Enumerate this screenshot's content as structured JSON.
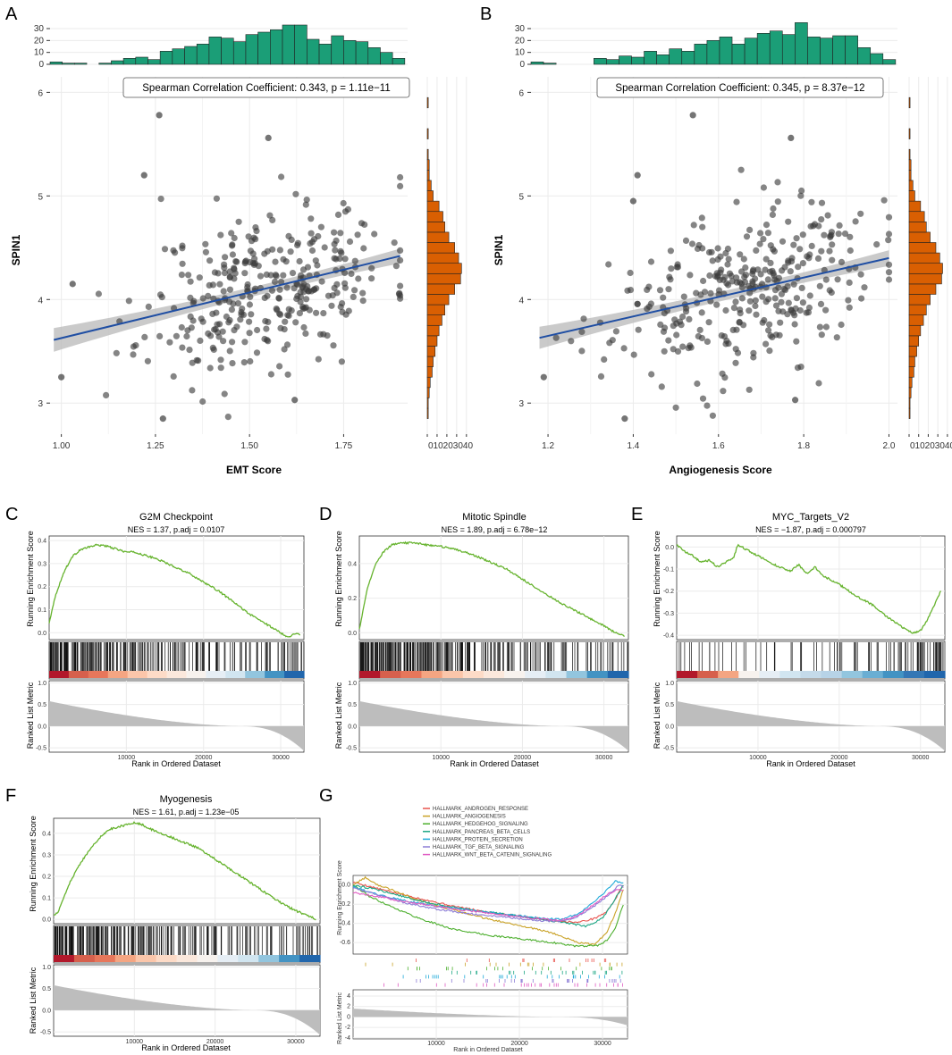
{
  "panel_labels": [
    "A",
    "B",
    "C",
    "D",
    "E",
    "F",
    "G"
  ],
  "colors": {
    "hist_top": "#1b9e77",
    "hist_right": "#d95f02",
    "points": "#3a3a3a",
    "reg_line": "#1f4ea3",
    "ribbon": "#b8b8b8",
    "es_line": "#66b32e",
    "metric_fill": "#bdbdbd",
    "grid": "#ebebeb"
  },
  "chart_data": [
    {
      "id": "A",
      "type": "scatter",
      "title": "Spearman Correlation Coefficient: 0.343, p = 1.11e−11",
      "xlabel": "EMT Score",
      "ylabel": "SPIN1",
      "xlim": [
        0.97,
        1.92
      ],
      "ylim": [
        2.7,
        6.15
      ],
      "xticks": [
        1.0,
        1.25,
        1.5,
        1.75
      ],
      "xtick_labels": [
        "1.00",
        "1.25",
        "1.50",
        "1.75"
      ],
      "yticks": [
        3,
        4,
        5,
        6
      ],
      "ytick_labels": [
        "3",
        "4",
        "5",
        "6"
      ],
      "regression": {
        "x0": 0.98,
        "y0": 3.61,
        "x1": 1.9,
        "y1": 4.42
      },
      "seed": 11,
      "n_points": 330,
      "x_mean": 1.55,
      "x_sd": 0.16,
      "y_mean": 4.0,
      "y_sd": 0.45,
      "outliers": [
        [
          1.0,
          3.25
        ],
        [
          1.26,
          5.78
        ],
        [
          1.55,
          5.56
        ],
        [
          1.22,
          5.2
        ],
        [
          1.27,
          2.85
        ],
        [
          1.62,
          3.03
        ],
        [
          1.03,
          4.15
        ]
      ],
      "hist_x": {
        "bin_start": 0.97,
        "bin_width": 0.0325,
        "counts": [
          2,
          1,
          1,
          0,
          1,
          3,
          5,
          6,
          4,
          11,
          13,
          15,
          17,
          23,
          22,
          19,
          25,
          27,
          29,
          33,
          33,
          21,
          17,
          24,
          20,
          19,
          14,
          10,
          5
        ],
        "ticks": [
          0,
          10,
          20,
          30
        ],
        "tick_labels": [
          "0",
          "10",
          "20",
          "30"
        ],
        "max": 36
      },
      "hist_y": {
        "bin_start": 2.75,
        "bin_width": 0.1,
        "counts": [
          0,
          1,
          1,
          2,
          3,
          5,
          6,
          8,
          10,
          12,
          15,
          18,
          22,
          28,
          34,
          35,
          32,
          28,
          22,
          18,
          16,
          12,
          6,
          4,
          2,
          2,
          1,
          0,
          1,
          0,
          0,
          1,
          0
        ],
        "ticks": [
          0,
          10,
          20,
          30,
          40
        ],
        "tick_labels": [
          "0",
          "10",
          "20",
          "30",
          "40"
        ],
        "max": 42
      }
    },
    {
      "id": "B",
      "type": "scatter",
      "title": "Spearman Correlation Coefficient: 0.345, p = 8.37e−12",
      "xlabel": "Angiogenesis Score",
      "ylabel": "SPIN1",
      "xlim": [
        1.16,
        2.02
      ],
      "ylim": [
        2.7,
        6.15
      ],
      "xticks": [
        1.2,
        1.4,
        1.6,
        1.8,
        2.0
      ],
      "xtick_labels": [
        "1.2",
        "1.4",
        "1.6",
        "1.8",
        "2.0"
      ],
      "yticks": [
        3,
        4,
        5,
        6
      ],
      "ytick_labels": [
        "3",
        "4",
        "5",
        "6"
      ],
      "regression": {
        "x0": 1.18,
        "y0": 3.63,
        "x1": 2.0,
        "y1": 4.4
      },
      "seed": 23,
      "n_points": 330,
      "x_mean": 1.66,
      "x_sd": 0.15,
      "y_mean": 4.0,
      "y_sd": 0.45,
      "outliers": [
        [
          1.19,
          3.25
        ],
        [
          1.54,
          5.78
        ],
        [
          1.41,
          5.2
        ],
        [
          1.77,
          5.56
        ],
        [
          1.38,
          2.85
        ],
        [
          1.78,
          3.03
        ],
        [
          1.4,
          4.95
        ]
      ],
      "hist_x": {
        "bin_start": 1.16,
        "bin_width": 0.0295,
        "counts": [
          2,
          1,
          0,
          0,
          0,
          5,
          4,
          7,
          6,
          11,
          8,
          13,
          11,
          17,
          20,
          23,
          17,
          22,
          26,
          28,
          25,
          35,
          23,
          22,
          24,
          24,
          14,
          9,
          4
        ],
        "ticks": [
          0,
          10,
          20,
          30
        ],
        "tick_labels": [
          "0",
          "10",
          "20",
          "30"
        ],
        "max": 36
      },
      "hist_y": {
        "bin_start": 2.75,
        "bin_width": 0.1,
        "counts": [
          0,
          1,
          1,
          2,
          3,
          5,
          6,
          8,
          10,
          12,
          15,
          18,
          22,
          28,
          34,
          35,
          32,
          28,
          22,
          18,
          16,
          12,
          6,
          4,
          2,
          2,
          1,
          0,
          1,
          0,
          0,
          1,
          0
        ],
        "ticks": [
          0,
          10,
          20,
          30,
          40
        ],
        "tick_labels": [
          "0",
          "10",
          "20",
          "30",
          "40"
        ],
        "max": 42
      }
    },
    {
      "id": "C",
      "type": "line",
      "title": "G2M Checkpoint",
      "subtitle": "NES = 1.37, p.adj = 0.0107",
      "ylabel": "Running Enrichment Score",
      "metric_ylabel": "Ranked List Metric",
      "xlabel": "Rank in Ordered Dataset",
      "ylim": [
        -0.03,
        0.42
      ],
      "yticks": [
        0.0,
        0.1,
        0.2,
        0.3,
        0.4
      ],
      "ytick_labels": [
        "0.0",
        "0.1",
        "0.2",
        "0.3",
        "0.4"
      ],
      "x": [
        0,
        500,
        1000,
        2000,
        3000,
        4000,
        5000,
        6000,
        7000,
        8000,
        9000,
        10000,
        11000,
        12000,
        14000,
        16000,
        18000,
        20000,
        22000,
        24000,
        26000,
        28000,
        30000,
        31000,
        32000,
        32500
      ],
      "es": [
        0.04,
        0.12,
        0.18,
        0.27,
        0.33,
        0.36,
        0.37,
        0.38,
        0.38,
        0.37,
        0.36,
        0.35,
        0.35,
        0.34,
        0.32,
        0.29,
        0.26,
        0.22,
        0.18,
        0.13,
        0.08,
        0.04,
        0.0,
        -0.02,
        0.0,
        -0.01
      ],
      "gene_density": [
        24,
        22,
        20,
        18,
        16,
        14,
        12,
        12,
        10,
        10,
        9,
        8,
        8,
        7,
        6,
        6,
        6,
        7,
        8,
        10
      ],
      "heat": [
        "#b2182b",
        "#d6604d",
        "#e7775b",
        "#f4a582",
        "#fbc6aa",
        "#fddbc7",
        "#fbe8dc",
        "#f7f2ee",
        "#e6eef5",
        "#d1e5f0",
        "#92c5de",
        "#4393c3",
        "#2166ac"
      ],
      "metric_ylim": [
        -0.6,
        1.05
      ],
      "metric_yticks": [
        -0.5,
        0.0,
        0.5,
        1.0
      ],
      "metric_ytick_labels": [
        "-0.5",
        "0.0",
        "0.5",
        "1.0"
      ],
      "xticks": [
        10000,
        20000,
        30000
      ],
      "xtick_labels": [
        "10000",
        "20000",
        "30000"
      ]
    },
    {
      "id": "D",
      "type": "line",
      "title": "Mitotic Spindle",
      "subtitle": "NES = 1.89, p.adj = 6.78e−12",
      "ylabel": "Running Enrichment Score",
      "metric_ylabel": "Ranked List Metric",
      "xlabel": "Rank in Ordered Dataset",
      "ylim": [
        -0.04,
        0.56
      ],
      "yticks": [
        0.0,
        0.2,
        0.4
      ],
      "ytick_labels": [
        "0.0",
        "0.2",
        "0.4"
      ],
      "x": [
        0,
        500,
        1000,
        2000,
        3000,
        4000,
        5000,
        6000,
        7000,
        8000,
        10000,
        12000,
        14000,
        16000,
        18000,
        20000,
        22000,
        24000,
        26000,
        28000,
        30000,
        31000,
        32000,
        32500
      ],
      "es": [
        0.02,
        0.14,
        0.26,
        0.4,
        0.47,
        0.51,
        0.52,
        0.52,
        0.52,
        0.51,
        0.5,
        0.48,
        0.45,
        0.41,
        0.37,
        0.31,
        0.25,
        0.19,
        0.14,
        0.09,
        0.04,
        0.01,
        -0.01,
        -0.02
      ],
      "gene_density": [
        30,
        28,
        26,
        22,
        20,
        18,
        16,
        14,
        12,
        11,
        10,
        9,
        8,
        8,
        7,
        7,
        6,
        6,
        6,
        5
      ],
      "heat": [
        "#b2182b",
        "#d6604d",
        "#e7775b",
        "#f4a582",
        "#fbc6aa",
        "#fddbc7",
        "#fbe8dc",
        "#f7f2ee",
        "#e6eef5",
        "#d1e5f0",
        "#92c5de",
        "#4393c3",
        "#2166ac"
      ],
      "metric_ylim": [
        -0.6,
        1.05
      ],
      "metric_yticks": [
        -0.5,
        0.0,
        0.5,
        1.0
      ],
      "metric_ytick_labels": [
        "-0.5",
        "0.0",
        "0.5",
        "1.0"
      ],
      "xticks": [
        10000,
        20000,
        30000
      ],
      "xtick_labels": [
        "10000",
        "20000",
        "30000"
      ]
    },
    {
      "id": "E",
      "type": "line",
      "title": "MYC_Targets_V2",
      "subtitle": "NES = −1.87, p.adj = 0.000797",
      "ylabel": "Running Enrichment Score",
      "metric_ylabel": "Ranked List Metric",
      "xlabel": "Rank in Ordered Dataset",
      "ylim": [
        -0.42,
        0.05
      ],
      "yticks": [
        0.0,
        -0.1,
        -0.2,
        -0.3,
        -0.4
      ],
      "ytick_labels": [
        "0.0",
        "-0.1",
        "-0.2",
        "-0.3",
        "-0.4"
      ],
      "x": [
        0,
        1000,
        2000,
        3000,
        4000,
        5000,
        6000,
        7000,
        7500,
        8000,
        10000,
        12000,
        14000,
        15000,
        16000,
        17000,
        18000,
        20000,
        22000,
        24000,
        26000,
        28000,
        29000,
        30000,
        31000,
        32000,
        32500
      ],
      "es": [
        0.01,
        -0.02,
        -0.04,
        -0.07,
        -0.06,
        -0.09,
        -0.07,
        -0.05,
        0.01,
        0.0,
        -0.04,
        -0.08,
        -0.11,
        -0.08,
        -0.12,
        -0.09,
        -0.13,
        -0.17,
        -0.22,
        -0.26,
        -0.32,
        -0.37,
        -0.39,
        -0.38,
        -0.32,
        -0.24,
        -0.2
      ],
      "gene_density": [
        4,
        3,
        3,
        2,
        2,
        3,
        2,
        2,
        2,
        3,
        3,
        3,
        4,
        4,
        5,
        5,
        6,
        8,
        10,
        14
      ],
      "heat": [
        "#b2182b",
        "#d6604d",
        "#f4a582",
        "#f7f2ee",
        "#e6eef5",
        "#d1e5f0",
        "#c4daea",
        "#b7d3e7",
        "#92c5de",
        "#6aaed3",
        "#4393c3",
        "#3577b5",
        "#2166ac"
      ],
      "metric_ylim": [
        -0.6,
        1.05
      ],
      "metric_yticks": [
        -0.5,
        0.0,
        0.5,
        1.0
      ],
      "metric_ytick_labels": [
        "-0.5",
        "0.0",
        "0.5",
        "1.0"
      ],
      "xticks": [
        10000,
        20000,
        30000
      ],
      "xtick_labels": [
        "10000",
        "20000",
        "30000"
      ]
    },
    {
      "id": "F",
      "type": "line",
      "title": "Myogenesis",
      "subtitle": "NES = 1.61, p.adj = 1.23e−05",
      "ylabel": "Running Enrichment Score",
      "metric_ylabel": "Ranked List Metric",
      "xlabel": "Rank in Ordered Dataset",
      "ylim": [
        -0.02,
        0.47
      ],
      "yticks": [
        0.0,
        0.1,
        0.2,
        0.3,
        0.4
      ],
      "ytick_labels": [
        "0.0",
        "0.1",
        "0.2",
        "0.3",
        "0.4"
      ],
      "x": [
        0,
        500,
        1000,
        2000,
        3000,
        4000,
        5000,
        6000,
        7000,
        8000,
        9000,
        10000,
        11000,
        12000,
        14000,
        16000,
        18000,
        20000,
        22000,
        24000,
        26000,
        28000,
        30000,
        32000,
        32500
      ],
      "es": [
        0.02,
        0.03,
        0.08,
        0.17,
        0.24,
        0.3,
        0.35,
        0.39,
        0.42,
        0.43,
        0.44,
        0.45,
        0.44,
        0.42,
        0.39,
        0.36,
        0.33,
        0.28,
        0.23,
        0.18,
        0.13,
        0.08,
        0.04,
        0.01,
        0.0
      ],
      "gene_density": [
        24,
        22,
        20,
        18,
        16,
        14,
        13,
        12,
        11,
        10,
        9,
        8,
        8,
        7,
        7,
        6,
        6,
        6,
        7,
        9
      ],
      "heat": [
        "#b2182b",
        "#d6604d",
        "#e7775b",
        "#f4a582",
        "#fbc6aa",
        "#fddbc7",
        "#fbe8dc",
        "#f7f2ee",
        "#e6eef5",
        "#d1e5f0",
        "#92c5de",
        "#4393c3",
        "#2166ac"
      ],
      "metric_ylim": [
        -0.6,
        1.05
      ],
      "metric_yticks": [
        -0.5,
        0.0,
        0.5,
        1.0
      ],
      "metric_ytick_labels": [
        "-0.5",
        "0.0",
        "0.5",
        "1.0"
      ],
      "xticks": [
        10000,
        20000,
        30000
      ],
      "xtick_labels": [
        "10000",
        "20000",
        "30000"
      ]
    },
    {
      "id": "G",
      "type": "line",
      "ylabel": "Running Enrichment Score",
      "metric_ylabel": "Ranked List Metric",
      "xlabel": "Rank in Ordered Dataset",
      "ylim": [
        -0.72,
        0.1
      ],
      "yticks": [
        0.0,
        -0.2,
        -0.4,
        -0.6
      ],
      "ytick_labels": [
        "0.0",
        "-0.2",
        "-0.4",
        "-0.6"
      ],
      "metric_ylim": [
        -4.2,
        5.2
      ],
      "metric_yticks": [
        -4,
        -2,
        0,
        2,
        4
      ],
      "metric_ytick_labels": [
        "-4",
        "-2",
        "0",
        "2",
        "4"
      ],
      "xticks": [
        10000,
        20000,
        30000
      ],
      "xtick_labels": [
        "10000",
        "20000",
        "30000"
      ],
      "series": [
        {
          "name": "HALLMARK_ANDROGEN_RESPONSE",
          "color": "#e8544e",
          "x": [
            0,
            4000,
            8000,
            12000,
            16000,
            20000,
            24000,
            27000,
            29000,
            30500,
            31500,
            32500
          ],
          "es": [
            0.03,
            -0.06,
            -0.14,
            -0.22,
            -0.28,
            -0.32,
            -0.37,
            -0.39,
            -0.35,
            -0.28,
            -0.15,
            0.0
          ]
        },
        {
          "name": "HALLMARK_ANGIOGENESIS",
          "color": "#c9a227",
          "x": [
            0,
            1500,
            3000,
            5000,
            8000,
            12000,
            16000,
            20000,
            24000,
            27000,
            29000,
            30500,
            31500,
            32500
          ],
          "es": [
            0.0,
            0.08,
            0.0,
            -0.06,
            -0.16,
            -0.26,
            -0.35,
            -0.42,
            -0.5,
            -0.6,
            -0.62,
            -0.5,
            -0.3,
            -0.05
          ]
        },
        {
          "name": "HALLMARK_HEDGEHOG_SIGNALING",
          "color": "#4daf2e",
          "x": [
            0,
            2000,
            5000,
            8000,
            12000,
            16000,
            20000,
            24000,
            27000,
            29500,
            30500,
            31500,
            32500
          ],
          "es": [
            0.0,
            -0.12,
            -0.24,
            -0.35,
            -0.46,
            -0.52,
            -0.56,
            -0.6,
            -0.64,
            -0.63,
            -0.58,
            -0.45,
            -0.2
          ]
        },
        {
          "name": "HALLMARK_PANCREAS_BETA_CELLS",
          "color": "#1aa683",
          "x": [
            0,
            3000,
            6000,
            10000,
            14000,
            18000,
            22000,
            26000,
            28000,
            30000,
            31000,
            32500
          ],
          "es": [
            0.0,
            -0.05,
            -0.12,
            -0.2,
            -0.26,
            -0.3,
            -0.35,
            -0.4,
            -0.43,
            -0.35,
            -0.22,
            0.0
          ]
        },
        {
          "name": "HALLMARK_PROTEIN_SECRETION",
          "color": "#1fa9d8",
          "x": [
            0,
            3000,
            6000,
            10000,
            14000,
            18000,
            22000,
            25000,
            27000,
            29000,
            30500,
            31500,
            32500
          ],
          "es": [
            -0.02,
            -0.1,
            -0.16,
            -0.22,
            -0.26,
            -0.3,
            -0.34,
            -0.36,
            -0.3,
            -0.18,
            -0.05,
            0.04,
            0.02
          ]
        },
        {
          "name": "HALLMARK_TGF_BETA_SIGNALING",
          "color": "#8c7dd6",
          "x": [
            0,
            3000,
            6000,
            10000,
            14000,
            18000,
            22000,
            25000,
            27000,
            29000,
            30500,
            32000,
            32500
          ],
          "es": [
            -0.03,
            -0.1,
            -0.18,
            -0.25,
            -0.3,
            -0.33,
            -0.37,
            -0.38,
            -0.33,
            -0.22,
            -0.12,
            0.0,
            -0.02
          ]
        },
        {
          "name": "HALLMARK_WNT_BETA_CATENIN_SIGNALING",
          "color": "#e05ac2",
          "x": [
            0,
            3000,
            6000,
            10000,
            14000,
            18000,
            22000,
            25000,
            27000,
            29000,
            30500,
            32000,
            32500
          ],
          "es": [
            -0.08,
            -0.12,
            -0.17,
            -0.22,
            -0.27,
            -0.31,
            -0.35,
            -0.37,
            -0.32,
            -0.2,
            -0.1,
            -0.04,
            -0.06
          ]
        }
      ]
    }
  ]
}
